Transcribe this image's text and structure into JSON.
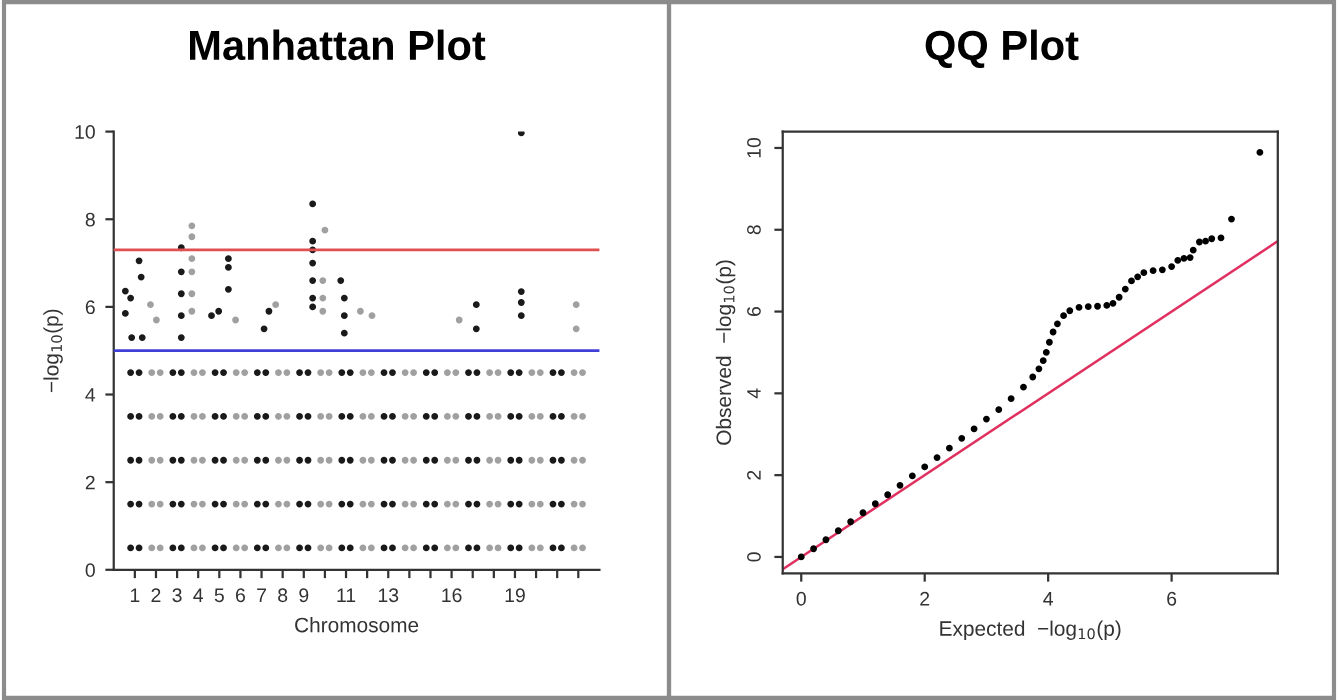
{
  "chart_data": [
    {
      "type": "scatter",
      "title": "Manhattan Plot",
      "xlabel": "Chromosome",
      "ylabel": "−log$_{10}$(p)",
      "marker": "circle",
      "xlim": [
        0,
        23
      ],
      "ylim": [
        0,
        10
      ],
      "yticks": [
        0,
        2,
        4,
        6,
        8,
        10
      ],
      "xticks": [
        1,
        2,
        3,
        4,
        5,
        6,
        7,
        8,
        9,
        {
          "value": 10,
          "label": null
        },
        11,
        {
          "value": 12,
          "label": null
        },
        13,
        {
          "value": 14,
          "label": null
        },
        {
          "value": 15,
          "label": null
        },
        16,
        {
          "value": 17,
          "label": null
        },
        {
          "value": 18,
          "label": null
        },
        19,
        {
          "value": 20,
          "label": null
        },
        {
          "value": 21,
          "label": null
        },
        {
          "value": 22,
          "label": null
        }
      ],
      "series": [
        {
          "color": "#1a1a1a",
          "x": [
            0.8,
            0.8,
            0.8,
            0.8,
            0.8,
            1.2,
            1.2,
            1.2,
            1.2,
            1.2,
            2.8,
            2.8,
            2.8,
            2.8,
            2.8,
            3.2,
            3.2,
            3.2,
            3.2,
            3.2,
            4.8,
            4.8,
            4.8,
            4.8,
            4.8,
            5.2,
            5.2,
            5.2,
            5.2,
            5.2,
            6.8,
            6.8,
            6.8,
            6.8,
            6.8,
            7.2,
            7.2,
            7.2,
            7.2,
            7.2,
            8.8,
            8.8,
            8.8,
            8.8,
            8.8,
            9.2,
            9.2,
            9.2,
            9.2,
            9.2,
            10.8,
            10.8,
            10.8,
            10.8,
            10.8,
            11.2,
            11.2,
            11.2,
            11.2,
            11.2,
            12.8,
            12.8,
            12.8,
            12.8,
            12.8,
            13.2,
            13.2,
            13.2,
            13.2,
            13.2,
            14.8,
            14.8,
            14.8,
            14.8,
            14.8,
            15.2,
            15.2,
            15.2,
            15.2,
            15.2,
            16.8,
            16.8,
            16.8,
            16.8,
            16.8,
            17.2,
            17.2,
            17.2,
            17.2,
            17.2,
            18.8,
            18.8,
            18.8,
            18.8,
            18.8,
            19.2,
            19.2,
            19.2,
            19.2,
            19.2,
            20.8,
            20.8,
            20.8,
            20.8,
            20.8,
            21.2,
            21.2,
            21.2,
            21.2,
            21.2,
            0.55,
            0.55,
            0.8,
            1.2,
            1.3,
            1.35,
            0.85,
            3.2,
            3.2,
            3.2,
            3.2,
            3.2,
            5.43,
            5.43,
            5.43,
            4.63,
            4.97,
            7.35,
            7.12,
            9.42,
            9.42,
            9.42,
            9.42,
            9.42,
            9.42,
            9.42,
            10.75,
            10.92,
            10.92,
            10.92,
            17.17,
            17.17,
            19.3,
            19.3,
            19.3,
            19.3
          ],
          "values": [
            0.5,
            1.5,
            2.5,
            3.5,
            4.5,
            0.5,
            1.5,
            2.5,
            3.5,
            4.5,
            0.5,
            1.5,
            2.5,
            3.5,
            4.5,
            0.5,
            1.5,
            2.5,
            3.5,
            4.5,
            0.5,
            1.5,
            2.5,
            3.5,
            4.5,
            0.5,
            1.5,
            2.5,
            3.5,
            4.5,
            0.5,
            1.5,
            2.5,
            3.5,
            4.5,
            0.5,
            1.5,
            2.5,
            3.5,
            4.5,
            0.5,
            1.5,
            2.5,
            3.5,
            4.5,
            0.5,
            1.5,
            2.5,
            3.5,
            4.5,
            0.5,
            1.5,
            2.5,
            3.5,
            4.5,
            0.5,
            1.5,
            2.5,
            3.5,
            4.5,
            0.5,
            1.5,
            2.5,
            3.5,
            4.5,
            0.5,
            1.5,
            2.5,
            3.5,
            4.5,
            0.5,
            1.5,
            2.5,
            3.5,
            4.5,
            0.5,
            1.5,
            2.5,
            3.5,
            4.5,
            0.5,
            1.5,
            2.5,
            3.5,
            4.5,
            0.5,
            1.5,
            2.5,
            3.5,
            4.5,
            0.5,
            1.5,
            2.5,
            3.5,
            4.5,
            0.5,
            1.5,
            2.5,
            3.5,
            4.5,
            0.5,
            1.5,
            2.5,
            3.5,
            4.5,
            0.5,
            1.5,
            2.5,
            3.5,
            4.5,
            6.36,
            5.85,
            6.2,
            7.05,
            6.68,
            5.3,
            5.3,
            7.35,
            6.8,
            6.3,
            5.8,
            5.3,
            7.1,
            6.9,
            6.4,
            5.8,
            5.9,
            5.9,
            5.5,
            8.35,
            7.5,
            7.3,
            7.0,
            6.6,
            6.2,
            6.0,
            6.6,
            6.2,
            5.8,
            5.4,
            6.05,
            5.5,
            9.97,
            6.35,
            6.1,
            5.8
          ]
        },
        {
          "color": "#a0a0a0",
          "x": [
            1.8,
            1.8,
            1.8,
            1.8,
            1.8,
            2.2,
            2.2,
            2.2,
            2.2,
            2.2,
            3.8,
            3.8,
            3.8,
            3.8,
            3.8,
            4.2,
            4.2,
            4.2,
            4.2,
            4.2,
            5.8,
            5.8,
            5.8,
            5.8,
            5.8,
            6.2,
            6.2,
            6.2,
            6.2,
            6.2,
            7.8,
            7.8,
            7.8,
            7.8,
            7.8,
            8.2,
            8.2,
            8.2,
            8.2,
            8.2,
            9.8,
            9.8,
            9.8,
            9.8,
            9.8,
            10.2,
            10.2,
            10.2,
            10.2,
            10.2,
            11.8,
            11.8,
            11.8,
            11.8,
            11.8,
            12.2,
            12.2,
            12.2,
            12.2,
            12.2,
            13.8,
            13.8,
            13.8,
            13.8,
            13.8,
            14.2,
            14.2,
            14.2,
            14.2,
            14.2,
            15.8,
            15.8,
            15.8,
            15.8,
            15.8,
            16.2,
            16.2,
            16.2,
            16.2,
            16.2,
            17.8,
            17.8,
            17.8,
            17.8,
            17.8,
            18.2,
            18.2,
            18.2,
            18.2,
            18.2,
            19.8,
            19.8,
            19.8,
            19.8,
            19.8,
            20.2,
            20.2,
            20.2,
            20.2,
            20.2,
            21.8,
            21.8,
            21.8,
            21.8,
            21.8,
            22.2,
            22.2,
            22.2,
            22.2,
            22.2,
            1.74,
            2.02,
            3.7,
            3.7,
            3.7,
            3.7,
            3.7,
            3.7,
            5.77,
            7.67,
            10.0,
            9.9,
            9.9,
            9.9,
            11.68,
            12.23,
            16.36,
            21.9,
            21.9
          ],
          "values": [
            0.5,
            1.5,
            2.5,
            3.5,
            4.5,
            0.5,
            1.5,
            2.5,
            3.5,
            4.5,
            0.5,
            1.5,
            2.5,
            3.5,
            4.5,
            0.5,
            1.5,
            2.5,
            3.5,
            4.5,
            0.5,
            1.5,
            2.5,
            3.5,
            4.5,
            0.5,
            1.5,
            2.5,
            3.5,
            4.5,
            0.5,
            1.5,
            2.5,
            3.5,
            4.5,
            0.5,
            1.5,
            2.5,
            3.5,
            4.5,
            0.5,
            1.5,
            2.5,
            3.5,
            4.5,
            0.5,
            1.5,
            2.5,
            3.5,
            4.5,
            0.5,
            1.5,
            2.5,
            3.5,
            4.5,
            0.5,
            1.5,
            2.5,
            3.5,
            4.5,
            0.5,
            1.5,
            2.5,
            3.5,
            4.5,
            0.5,
            1.5,
            2.5,
            3.5,
            4.5,
            0.5,
            1.5,
            2.5,
            3.5,
            4.5,
            0.5,
            1.5,
            2.5,
            3.5,
            4.5,
            0.5,
            1.5,
            2.5,
            3.5,
            4.5,
            0.5,
            1.5,
            2.5,
            3.5,
            4.5,
            0.5,
            1.5,
            2.5,
            3.5,
            4.5,
            0.5,
            1.5,
            2.5,
            3.5,
            4.5,
            0.5,
            1.5,
            2.5,
            3.5,
            4.5,
            0.5,
            1.5,
            2.5,
            3.5,
            4.5,
            6.05,
            5.7,
            7.85,
            7.6,
            7.1,
            6.8,
            6.3,
            5.9,
            5.7,
            6.05,
            7.75,
            6.6,
            6.2,
            5.9,
            5.9,
            5.8,
            5.7,
            6.05,
            5.5
          ]
        }
      ],
      "ref_lines": [
        {
          "axis": "y",
          "value": 7.3,
          "color": "#e05050"
        },
        {
          "axis": "y",
          "value": 5,
          "color": "#4040d8"
        }
      ]
    },
    {
      "type": "scatter",
      "title": "QQ Plot",
      "xlabel": "Expected  −log$_{10}$(p)",
      "ylabel": "Observed  −log$_{10}$(p)",
      "xlim": [
        -0.3,
        7.72
      ],
      "ylim": [
        -0.4,
        10.4
      ],
      "xticks": [
        0,
        2,
        4,
        6
      ],
      "yticks": [
        0,
        2,
        4,
        6,
        8,
        10
      ],
      "series": [
        {
          "color": "#000000",
          "marker": "circle",
          "x": [
            0,
            0.2,
            0.4,
            0.6,
            0.8,
            1.0,
            1.2,
            1.4,
            1.6,
            1.8,
            2.0,
            2.2,
            2.4,
            2.6,
            2.8,
            3.0,
            3.2,
            3.4,
            3.6,
            3.75,
            3.85,
            3.92,
            3.97,
            4.02,
            4.08,
            4.15,
            4.25,
            4.35,
            4.5,
            4.65,
            4.8,
            4.95,
            5.05,
            5.15,
            5.25,
            5.35,
            5.45,
            5.55,
            5.7,
            5.85,
            6.0,
            6.1,
            6.2,
            6.3,
            6.35,
            6.45,
            6.55,
            6.65,
            6.8,
            6.97,
            7.43
          ],
          "values": [
            0,
            0.2,
            0.42,
            0.64,
            0.86,
            1.08,
            1.3,
            1.52,
            1.75,
            1.98,
            2.2,
            2.43,
            2.66,
            2.9,
            3.13,
            3.37,
            3.6,
            3.87,
            4.15,
            4.4,
            4.6,
            4.8,
            5.0,
            5.25,
            5.5,
            5.7,
            5.9,
            6.02,
            6.1,
            6.12,
            6.13,
            6.15,
            6.2,
            6.35,
            6.55,
            6.75,
            6.85,
            6.95,
            7.0,
            7.02,
            7.1,
            7.25,
            7.3,
            7.32,
            7.5,
            7.7,
            7.72,
            7.78,
            7.8,
            8.26,
            9.89
          ]
        },
        {
          "type": "line",
          "color": "#e03060",
          "x": [
            -0.3,
            7.72
          ],
          "values": [
            -0.3,
            7.72
          ]
        }
      ]
    }
  ]
}
